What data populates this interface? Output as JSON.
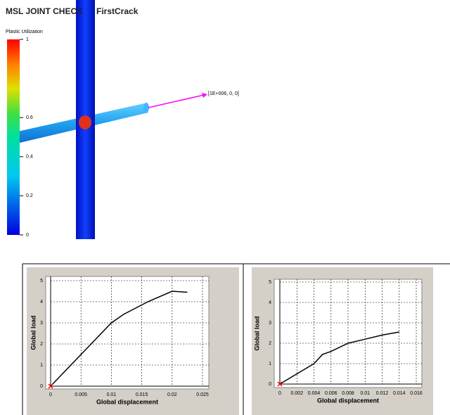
{
  "header": {
    "title": "MSL JOINT CHECK",
    "subtitle": "FirstCrack"
  },
  "colorbar": {
    "label": "Plastic Utilization",
    "lim": [
      0,
      1
    ],
    "ticks": [
      0,
      0.2,
      0.4,
      0.6,
      1
    ]
  },
  "annotation": "[1E+006, 0, 0]",
  "chart_data": [
    {
      "type": "line",
      "xlabel": "Global displacement",
      "ylabel": "Global load",
      "x": [
        0,
        0.005,
        0.01,
        0.012,
        0.016,
        0.02,
        0.0225
      ],
      "series": [
        {
          "color": "#000000",
          "values": [
            0,
            1.5,
            3.0,
            3.4,
            4.0,
            4.5,
            4.45
          ]
        }
      ],
      "marker": {
        "x": 0,
        "y": 0,
        "color": "#ff0000"
      },
      "xlim": [
        0,
        0.025
      ],
      "xticks": [
        0,
        0.005,
        0.01,
        0.015,
        0.02,
        0.025
      ],
      "ylim": [
        0,
        5
      ],
      "yticks": [
        0,
        1,
        2,
        3,
        4,
        5
      ],
      "grid": true
    },
    {
      "type": "line",
      "xlabel": "Global displacement",
      "ylabel": "Global load",
      "x": [
        0,
        0.002,
        0.004,
        0.005,
        0.006,
        0.008,
        0.01,
        0.012,
        0.014
      ],
      "series": [
        {
          "color": "#000000",
          "values": [
            0,
            0.5,
            1.0,
            1.45,
            1.6,
            2.0,
            2.2,
            2.4,
            2.55
          ]
        }
      ],
      "marker": {
        "x": 0,
        "y": 0,
        "color": "#ff0000"
      },
      "xlim": [
        0,
        0.016
      ],
      "xticks": [
        0,
        0.002,
        0.004,
        0.006,
        0.008,
        0.01,
        0.012,
        0.014,
        0.016
      ],
      "ylim": [
        0,
        5
      ],
      "yticks": [
        0,
        1,
        2,
        3,
        4,
        5
      ],
      "grid": true
    }
  ]
}
